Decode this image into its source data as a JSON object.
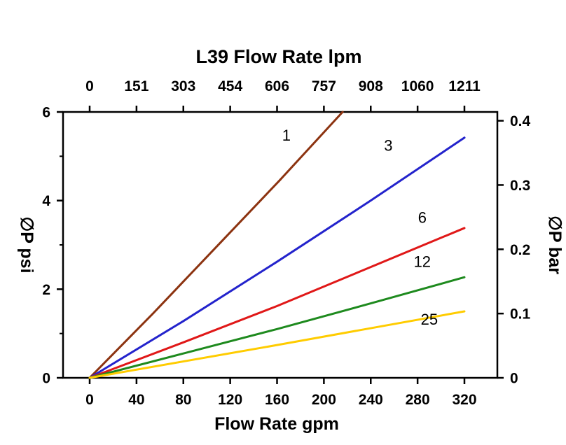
{
  "page": {
    "background": "#ffffff",
    "axis_color": "#000000"
  },
  "chart_data": {
    "type": "line",
    "title": "L39 Flow Rate lpm",
    "xlabel": "Flow Rate gpm",
    "ylabel_left": "∅P psi",
    "ylabel_right": "∅P bar",
    "x_ticks_bottom": [
      "0",
      "40",
      "80",
      "120",
      "160",
      "200",
      "240",
      "280",
      "320"
    ],
    "x_ticks_top": [
      "0",
      "151",
      "303",
      "454",
      "606",
      "757",
      "908",
      "1060",
      "1211"
    ],
    "y_ticks_left": [
      "0",
      "2",
      "4",
      "6"
    ],
    "y_minor_ticks_left": [
      1,
      3,
      5
    ],
    "y_ticks_right": [
      "0",
      "0.1",
      "0.2",
      "0.3",
      "0.4"
    ],
    "xlim_gpm": [
      0,
      347
    ],
    "ylim_psi": [
      0,
      6
    ],
    "ylim_bar": [
      0,
      0.414
    ],
    "grid": false,
    "legend": "inline-labels",
    "series": [
      {
        "name": "1",
        "color": "#8C3310",
        "label_pos": [
          168,
          5.35
        ],
        "points": [
          [
            0,
            0
          ],
          [
            54,
            1.45
          ],
          [
            108,
            2.95
          ],
          [
            162,
            4.45
          ],
          [
            216,
            6.0
          ]
        ]
      },
      {
        "name": "3",
        "color": "#2323CC",
        "label_pos": [
          255,
          5.12
        ],
        "points": [
          [
            0,
            0
          ],
          [
            80,
            1.28
          ],
          [
            160,
            2.62
          ],
          [
            240,
            4.0
          ],
          [
            320,
            5.42
          ]
        ]
      },
      {
        "name": "6",
        "color": "#E01818",
        "label_pos": [
          284,
          3.5
        ],
        "points": [
          [
            0,
            0
          ],
          [
            80,
            0.8
          ],
          [
            160,
            1.62
          ],
          [
            240,
            2.5
          ],
          [
            320,
            3.38
          ]
        ]
      },
      {
        "name": "12",
        "color": "#1E8A1E",
        "label_pos": [
          284,
          2.5
        ],
        "points": [
          [
            0,
            0
          ],
          [
            80,
            0.55
          ],
          [
            160,
            1.1
          ],
          [
            240,
            1.68
          ],
          [
            320,
            2.27
          ]
        ]
      },
      {
        "name": "25",
        "color": "#FFCC00",
        "label_pos": [
          290,
          1.2
        ],
        "points": [
          [
            0,
            0
          ],
          [
            80,
            0.37
          ],
          [
            160,
            0.74
          ],
          [
            240,
            1.12
          ],
          [
            320,
            1.5
          ]
        ]
      }
    ]
  }
}
